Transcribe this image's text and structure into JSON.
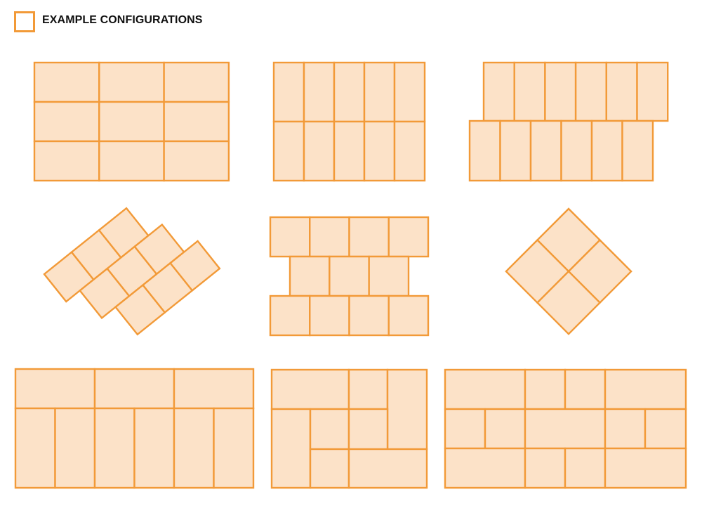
{
  "header": {
    "title": "EXAMPLE CONFIGURATIONS",
    "legend_icon": "square-outline-icon"
  },
  "colors": {
    "tile_stroke": "#f29a38",
    "tile_fill": "#fce2c8",
    "title_text": "#111111"
  }
}
